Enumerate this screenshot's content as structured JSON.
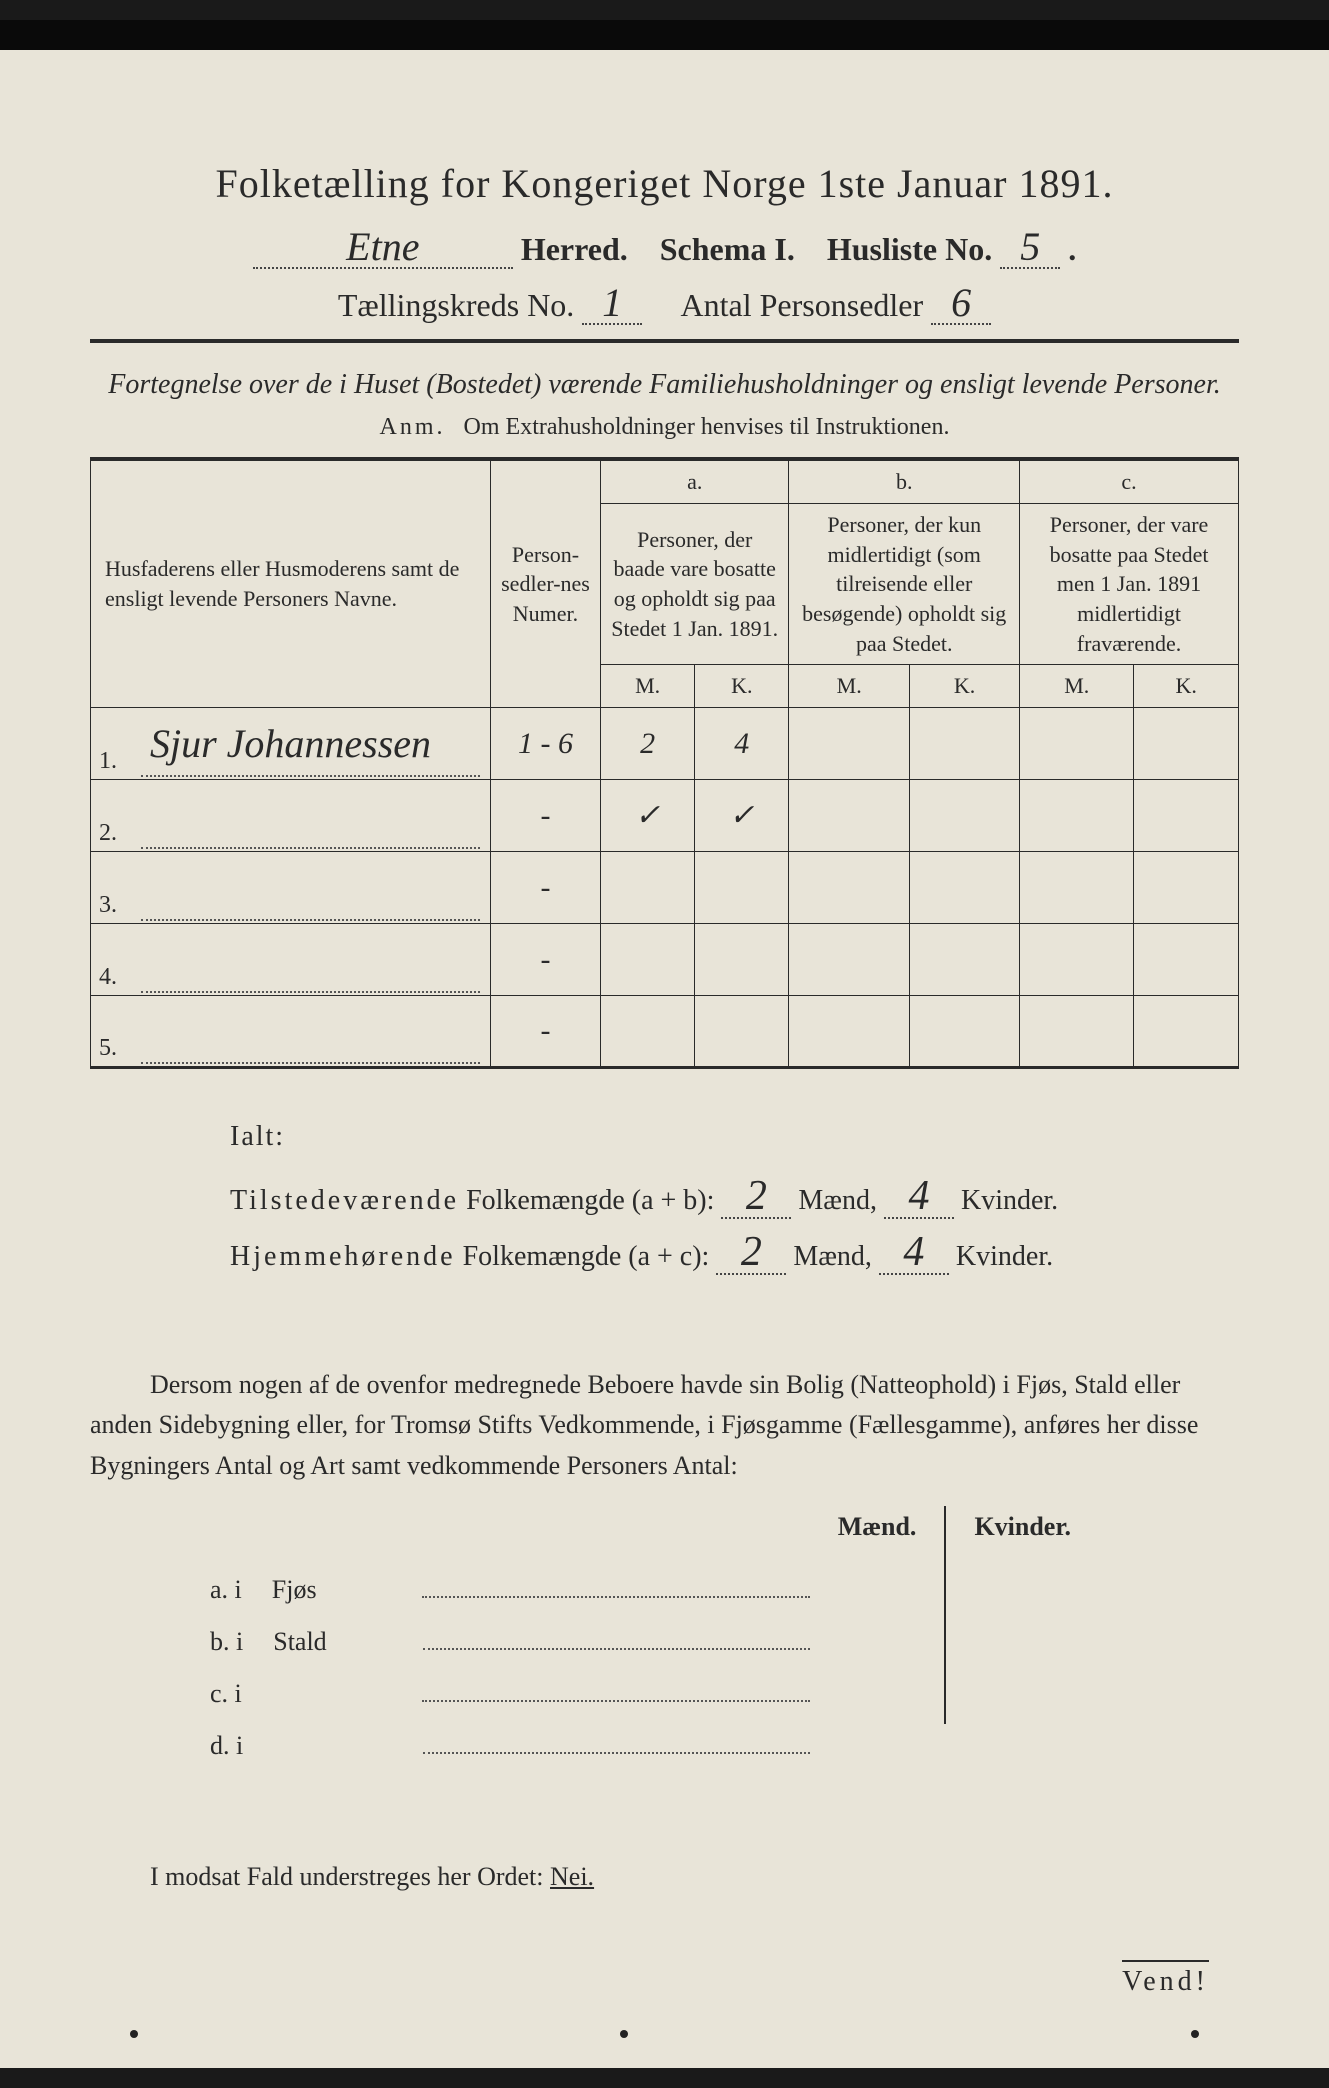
{
  "title": "Folketælling for Kongeriget Norge 1ste Januar 1891.",
  "header": {
    "herred_value": "Etne",
    "herred_label": "Herred.",
    "schema_label": "Schema I.",
    "husliste_label": "Husliste No.",
    "husliste_value": "5",
    "tkreds_label": "Tællingskreds No.",
    "tkreds_value": "1",
    "personsedler_label": "Antal Personsedler",
    "personsedler_value": "6"
  },
  "subtitle": "Fortegnelse over de i Huset (Bostedet) værende Familiehusholdninger og ensligt levende Personer.",
  "anm_lead": "Anm.",
  "anm_text": "Om Extrahusholdninger henvises til Instruktionen.",
  "table": {
    "h_name": "Husfaderens eller Husmoderens samt de ensligt levende Personers Navne.",
    "h_num": "Person-sedler-nes Numer.",
    "h_a_top": "a.",
    "h_a": "Personer, der baade vare bosatte og opholdt sig paa Stedet 1 Jan. 1891.",
    "h_b_top": "b.",
    "h_b": "Personer, der kun midlertidigt (som tilreisende eller besøgende) opholdt sig paa Stedet.",
    "h_c_top": "c.",
    "h_c": "Personer, der vare bosatte paa Stedet men 1 Jan. 1891 midlertidigt fraværende.",
    "mk_m": "M.",
    "mk_k": "K.",
    "rows": [
      {
        "n": "1.",
        "name": "Sjur Johannessen",
        "num": "1 - 6",
        "a_m": "2",
        "a_k": "4",
        "b_m": "",
        "b_k": "",
        "c_m": "",
        "c_k": ""
      },
      {
        "n": "2.",
        "name": "",
        "num": "-",
        "a_m": "✓",
        "a_k": "✓",
        "b_m": "",
        "b_k": "",
        "c_m": "",
        "c_k": ""
      },
      {
        "n": "3.",
        "name": "",
        "num": "-",
        "a_m": "",
        "a_k": "",
        "b_m": "",
        "b_k": "",
        "c_m": "",
        "c_k": ""
      },
      {
        "n": "4.",
        "name": "",
        "num": "-",
        "a_m": "",
        "a_k": "",
        "b_m": "",
        "b_k": "",
        "c_m": "",
        "c_k": ""
      },
      {
        "n": "5.",
        "name": "",
        "num": "-",
        "a_m": "",
        "a_k": "",
        "b_m": "",
        "b_k": "",
        "c_m": "",
        "c_k": ""
      }
    ]
  },
  "totals": {
    "ialt": "Ialt:",
    "line1_a": "Tilstedeværende",
    "line1_b": "Folkemængde (a + b):",
    "line2_a": "Hjemmehørende",
    "line2_b": "Folkemængde (a + c):",
    "maend": "Mænd,",
    "kvinder": "Kvinder.",
    "ab_m": "2",
    "ab_k": "4",
    "ac_m": "2",
    "ac_k": "4"
  },
  "footpara": "Dersom nogen af de ovenfor medregnede Beboere havde sin Bolig (Natteophold) i Fjøs, Stald eller anden Sidebygning eller, for Tromsø Stifts Vedkommende, i Fjøsgamme (Fællesgamme), anføres her disse Bygningers Antal og Art samt vedkommende Personers Antal:",
  "mkhdr": {
    "m": "Mænd.",
    "k": "Kvinder."
  },
  "abcd": {
    "a": "a.  i",
    "a2": "Fjøs",
    "b": "b.  i",
    "b2": "Stald",
    "c": "c.  i",
    "c2": "",
    "d": "d.  i",
    "d2": ""
  },
  "bottomline_a": "I modsat Fald understreges her Ordet:",
  "bottomline_nei": "Nei.",
  "vend": "Vend!",
  "colors": {
    "page_bg": "#e8e4d8",
    "ink": "#2a2a2a",
    "frame": "#0a0a0a"
  }
}
